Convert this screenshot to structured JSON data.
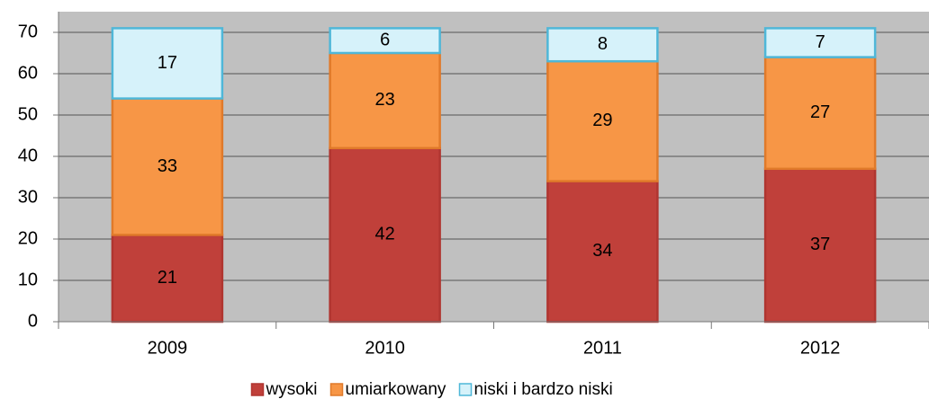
{
  "chart_data": {
    "type": "stacked_bar",
    "categories": [
      "2009",
      "2010",
      "2011",
      "2012"
    ],
    "series": [
      {
        "name": "wysoki",
        "color": "#c0403a",
        "values": [
          21,
          42,
          34,
          37
        ]
      },
      {
        "name": "umiarkowany",
        "color": "#f79646",
        "values": [
          33,
          23,
          29,
          27
        ]
      },
      {
        "name": "niski i bardzo niski",
        "color": "#d6f2fa",
        "values": [
          17,
          6,
          8,
          7
        ]
      }
    ],
    "ylim": [
      0,
      75
    ],
    "yticks": [
      0,
      10,
      20,
      30,
      40,
      50,
      60,
      70
    ],
    "grid": true,
    "legend": "bottom"
  }
}
